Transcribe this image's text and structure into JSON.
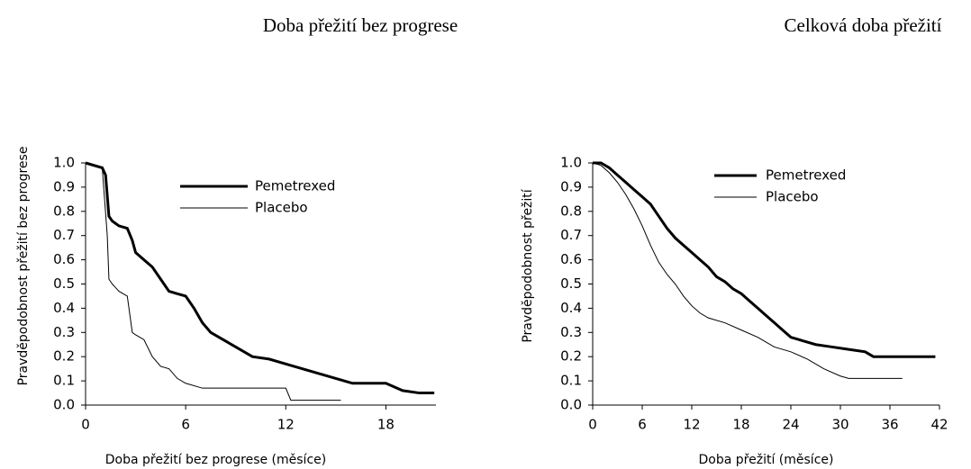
{
  "chart_data": [
    {
      "type": "line",
      "title": "Doba přežití bez progrese",
      "x_label": "Doba přežití bez progrese (měsíce)",
      "y_label": "Pravděpodobnost přežití bez progrese",
      "xlim": [
        0,
        21
      ],
      "xticks": [
        0,
        6,
        12,
        18
      ],
      "ylim": [
        0,
        1
      ],
      "yticks": [
        {
          "value": 0,
          "label": "0.0"
        },
        0.1,
        0.2,
        0.3,
        0.4,
        0.5,
        0.6,
        0.7,
        0.8,
        0.9,
        {
          "value": 1,
          "label": "1.0"
        }
      ],
      "grid": false,
      "series": [
        {
          "name": "Pemetrexed",
          "color": "#000000",
          "linewidth": 3,
          "x": [
            0,
            1.0,
            1.2,
            1.4,
            1.6,
            2.0,
            2.5,
            2.8,
            3.0,
            3.5,
            4.0,
            4.5,
            5.0,
            5.5,
            6.0,
            6.5,
            7.0,
            7.5,
            8.0,
            9.0,
            10.0,
            11.0,
            12.0,
            13.0,
            14.0,
            15.0,
            16.0,
            18.0,
            19.0,
            20.0,
            20.9
          ],
          "values": [
            1.0,
            0.98,
            0.95,
            0.78,
            0.76,
            0.74,
            0.73,
            0.68,
            0.63,
            0.6,
            0.57,
            0.52,
            0.47,
            0.46,
            0.45,
            0.4,
            0.34,
            0.3,
            0.28,
            0.24,
            0.2,
            0.19,
            0.17,
            0.15,
            0.13,
            0.11,
            0.09,
            0.09,
            0.06,
            0.05,
            0.05
          ]
        },
        {
          "name": "Placebo",
          "color": "#000000",
          "linewidth": 1,
          "x": [
            0,
            1.0,
            1.3,
            1.4,
            1.6,
            2.0,
            2.5,
            2.8,
            3.0,
            3.5,
            4.0,
            4.5,
            5.0,
            5.5,
            6.0,
            7.0,
            9.0,
            12.0,
            12.3,
            15.3
          ],
          "values": [
            1.0,
            0.98,
            0.7,
            0.52,
            0.5,
            0.47,
            0.45,
            0.3,
            0.29,
            0.27,
            0.2,
            0.16,
            0.15,
            0.11,
            0.09,
            0.07,
            0.07,
            0.07,
            0.02,
            0.02
          ]
        }
      ]
    },
    {
      "type": "line",
      "title": "Celková doba přežití",
      "x_label": "Doba přežití (měsíce)",
      "y_label": "Pravděpodobnost přežití",
      "xlim": [
        0,
        42
      ],
      "xticks": [
        0,
        6,
        12,
        18,
        24,
        30,
        36,
        42
      ],
      "ylim": [
        0,
        1
      ],
      "yticks": [
        {
          "value": 0,
          "label": "0.0"
        },
        0.1,
        0.2,
        0.3,
        0.4,
        0.5,
        0.6,
        0.7,
        0.8,
        0.9,
        {
          "value": 1,
          "label": "1.0"
        }
      ],
      "grid": false,
      "series": [
        {
          "name": "Pemetrexed",
          "color": "#000000",
          "linewidth": 3,
          "x": [
            0,
            1,
            2,
            3,
            4,
            5,
            6,
            7,
            8,
            9,
            10,
            11,
            12,
            13,
            14,
            15,
            16,
            17,
            18,
            19,
            20,
            21,
            22,
            23,
            24,
            25,
            27,
            29,
            31,
            33,
            34,
            38,
            41.5
          ],
          "values": [
            1.0,
            1.0,
            0.98,
            0.95,
            0.92,
            0.89,
            0.86,
            0.83,
            0.78,
            0.73,
            0.69,
            0.66,
            0.63,
            0.6,
            0.57,
            0.53,
            0.51,
            0.48,
            0.46,
            0.43,
            0.4,
            0.37,
            0.34,
            0.31,
            0.28,
            0.27,
            0.25,
            0.24,
            0.23,
            0.22,
            0.2,
            0.2,
            0.2
          ]
        },
        {
          "name": "Placebo",
          "color": "#000000",
          "linewidth": 1,
          "x": [
            0,
            1,
            2,
            3,
            4,
            5,
            6,
            7,
            8,
            9,
            10,
            11,
            12,
            13,
            14,
            16,
            18,
            20,
            22,
            24,
            26,
            28,
            30,
            31,
            37.5
          ],
          "values": [
            1.0,
            0.99,
            0.96,
            0.92,
            0.87,
            0.81,
            0.74,
            0.66,
            0.59,
            0.54,
            0.5,
            0.45,
            0.41,
            0.38,
            0.36,
            0.34,
            0.31,
            0.28,
            0.24,
            0.22,
            0.19,
            0.15,
            0.12,
            0.11,
            0.11
          ]
        }
      ]
    }
  ]
}
